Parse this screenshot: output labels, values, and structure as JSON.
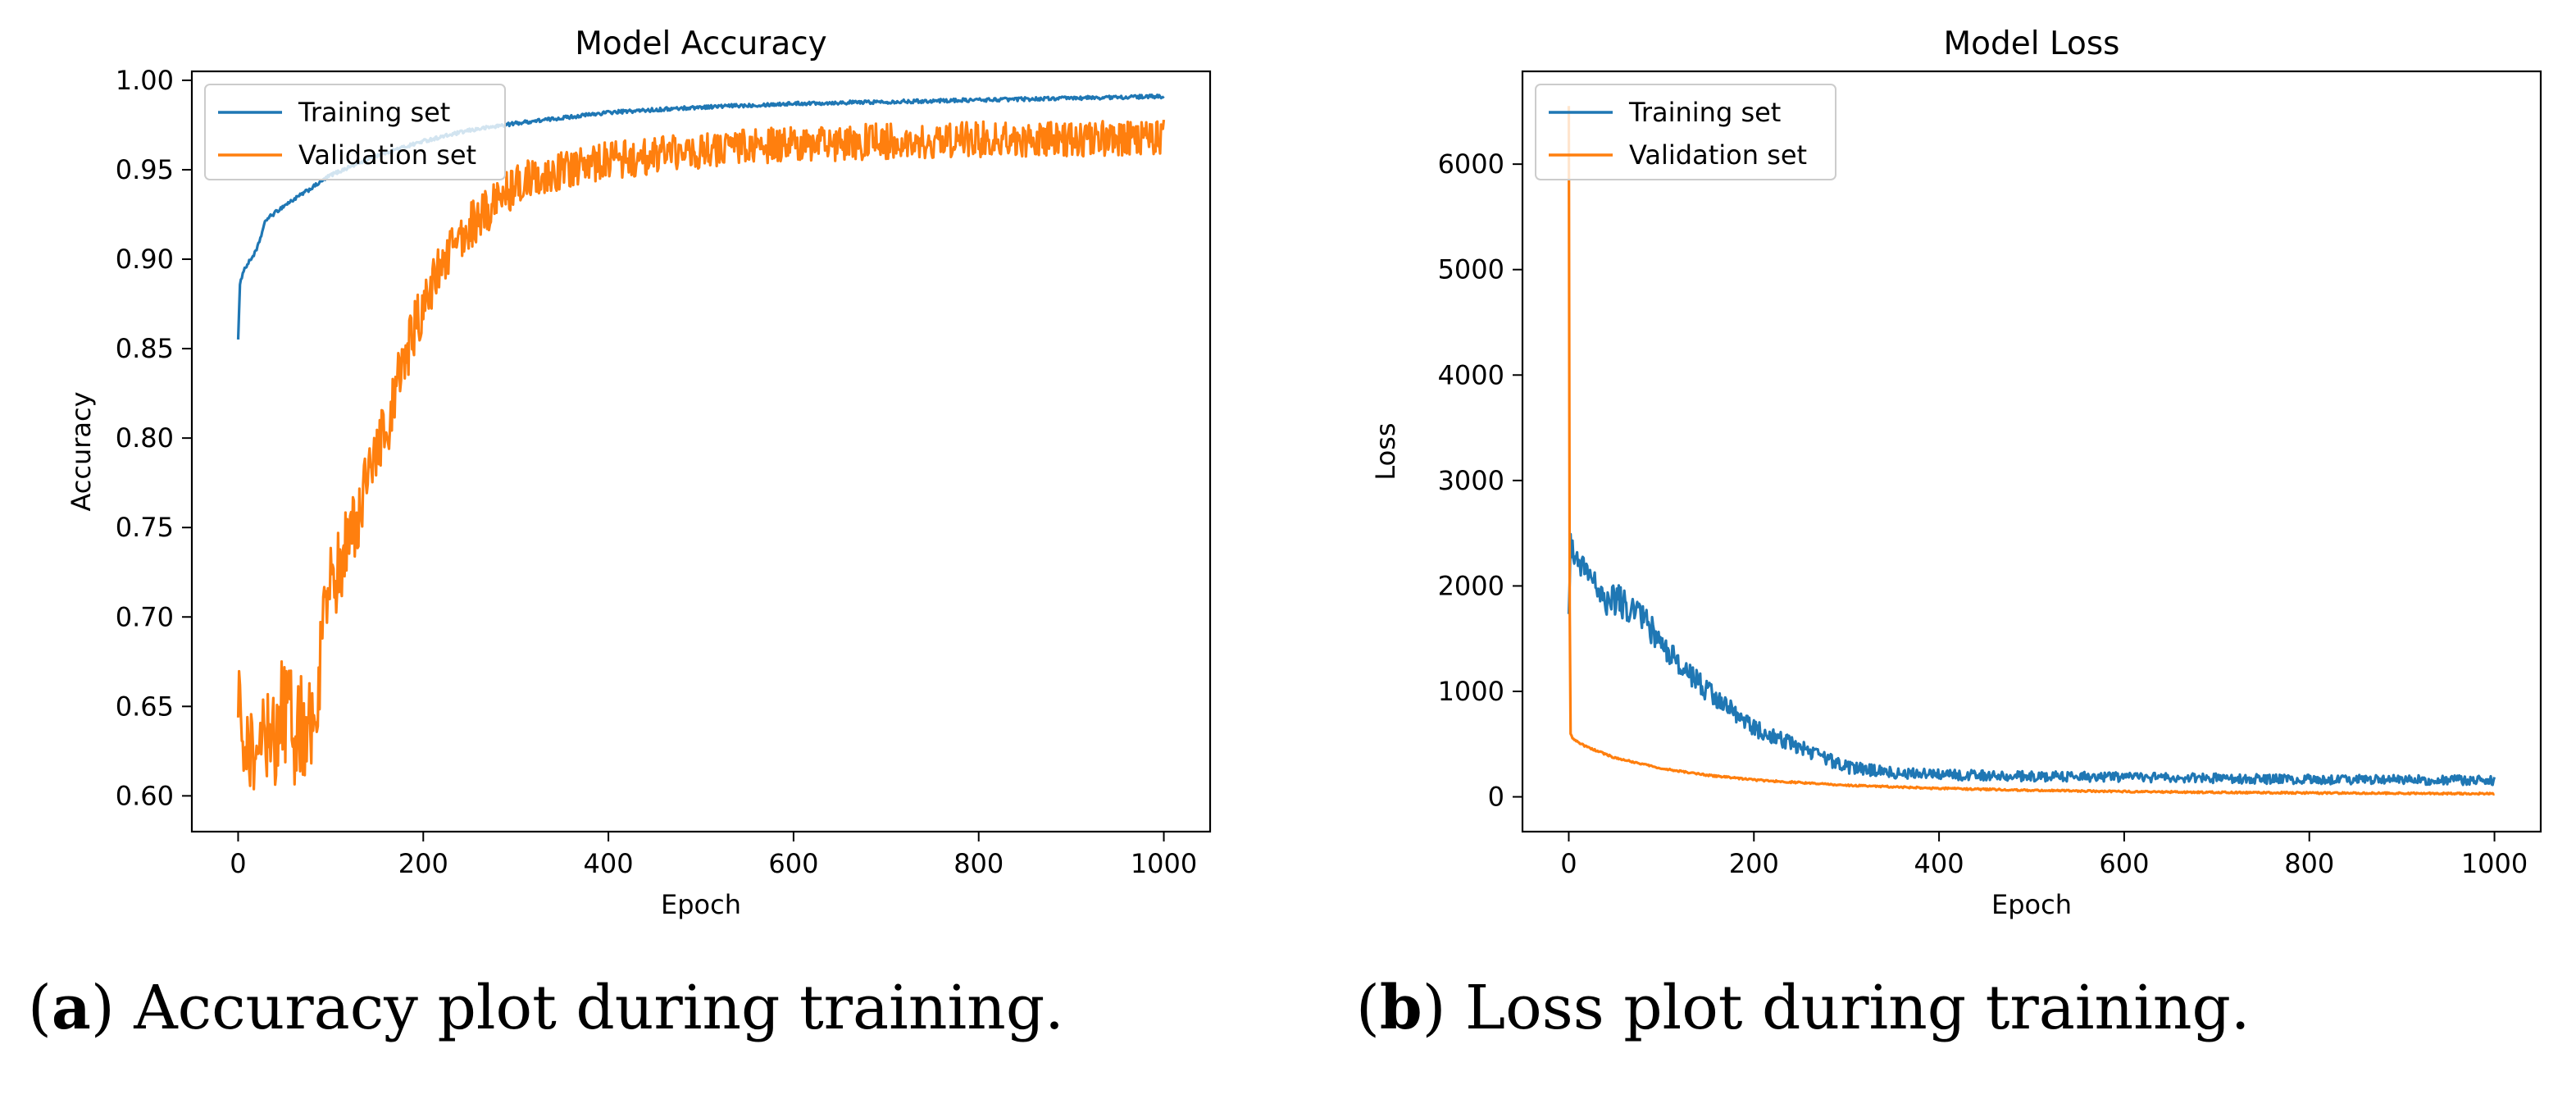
{
  "colors": {
    "training": "#1f77b4",
    "validation": "#ff7f0e",
    "axis": "#000000"
  },
  "chart_data": [
    {
      "type": "line",
      "title": "Model Accuracy",
      "xlabel": "Epoch",
      "ylabel": "Accuracy",
      "xlim": [
        -50,
        1050
      ],
      "ylim": [
        0.58,
        1.005
      ],
      "xticks": [
        0,
        200,
        400,
        600,
        800,
        1000
      ],
      "yticks": [
        0.6,
        0.65,
        0.7,
        0.75,
        0.8,
        0.85,
        0.9,
        0.95,
        1.0
      ],
      "ytick_labels": [
        "0.60",
        "0.65",
        "0.70",
        "0.75",
        "0.80",
        "0.85",
        "0.90",
        "0.95",
        "1.00"
      ],
      "legend": {
        "position": "upper-left",
        "entries": [
          "Training set",
          "Validation set"
        ]
      },
      "series": [
        {
          "name": "Training set",
          "color": "#1f77b4",
          "noise": 0.001,
          "x": [
            0,
            2,
            5,
            10,
            20,
            30,
            50,
            80,
            100,
            150,
            200,
            250,
            300,
            350,
            400,
            500,
            600,
            700,
            800,
            900,
            1000
          ],
          "y": [
            0.856,
            0.885,
            0.893,
            0.897,
            0.905,
            0.922,
            0.93,
            0.94,
            0.947,
            0.958,
            0.966,
            0.972,
            0.976,
            0.979,
            0.982,
            0.985,
            0.987,
            0.988,
            0.989,
            0.99,
            0.991
          ]
        },
        {
          "name": "Validation set",
          "color": "#ff7f0e",
          "noise": 0.04,
          "noiseDecay": 90,
          "x": [
            0,
            5,
            10,
            20,
            40,
            60,
            80,
            90,
            100,
            120,
            140,
            160,
            180,
            200,
            220,
            250,
            280,
            300,
            350,
            400,
            450,
            500,
            600,
            700,
            800,
            900,
            1000
          ],
          "y": [
            0.664,
            0.64,
            0.625,
            0.628,
            0.64,
            0.64,
            0.635,
            0.68,
            0.715,
            0.745,
            0.775,
            0.805,
            0.845,
            0.875,
            0.898,
            0.918,
            0.932,
            0.942,
            0.95,
            0.955,
            0.958,
            0.961,
            0.964,
            0.966,
            0.967,
            0.967,
            0.968
          ]
        }
      ]
    },
    {
      "type": "line",
      "title": "Model Loss",
      "xlabel": "Epoch",
      "ylabel": "Loss",
      "xlim": [
        -50,
        1050
      ],
      "ylim": [
        -330,
        6880
      ],
      "xticks": [
        0,
        200,
        400,
        600,
        800,
        1000
      ],
      "yticks": [
        0,
        1000,
        2000,
        3000,
        4000,
        5000,
        6000
      ],
      "ytick_labels": [
        "0",
        "1000",
        "2000",
        "3000",
        "4000",
        "5000",
        "6000"
      ],
      "legend": {
        "position": "upper-left",
        "entries": [
          "Training set",
          "Validation set"
        ]
      },
      "series": [
        {
          "name": "Training set",
          "color": "#1f77b4",
          "noise": 180,
          "noiseDecay": 120,
          "x": [
            0,
            2,
            5,
            10,
            20,
            40,
            60,
            80,
            100,
            120,
            150,
            180,
            200,
            250,
            300,
            350,
            400,
            500,
            600,
            700,
            800,
            900,
            1000
          ],
          "y": [
            1750,
            2400,
            2300,
            2250,
            2100,
            1900,
            1850,
            1700,
            1450,
            1250,
            1000,
            800,
            650,
            470,
            280,
            230,
            210,
            195,
            185,
            175,
            165,
            160,
            155
          ]
        },
        {
          "name": "Validation set",
          "color": "#ff7f0e",
          "noise": 8,
          "x": [
            0,
            1,
            2,
            4,
            10,
            20,
            50,
            100,
            150,
            200,
            300,
            400,
            500,
            600,
            700,
            800,
            900,
            1000
          ],
          "y": [
            6550,
            1800,
            600,
            560,
            520,
            470,
            370,
            270,
            205,
            160,
            110,
            80,
            62,
            50,
            42,
            37,
            33,
            30
          ]
        }
      ]
    }
  ],
  "captions": [
    {
      "letter": "a",
      "text": " Accuracy plot during training."
    },
    {
      "letter": "b",
      "text": " Loss plot during training."
    }
  ]
}
